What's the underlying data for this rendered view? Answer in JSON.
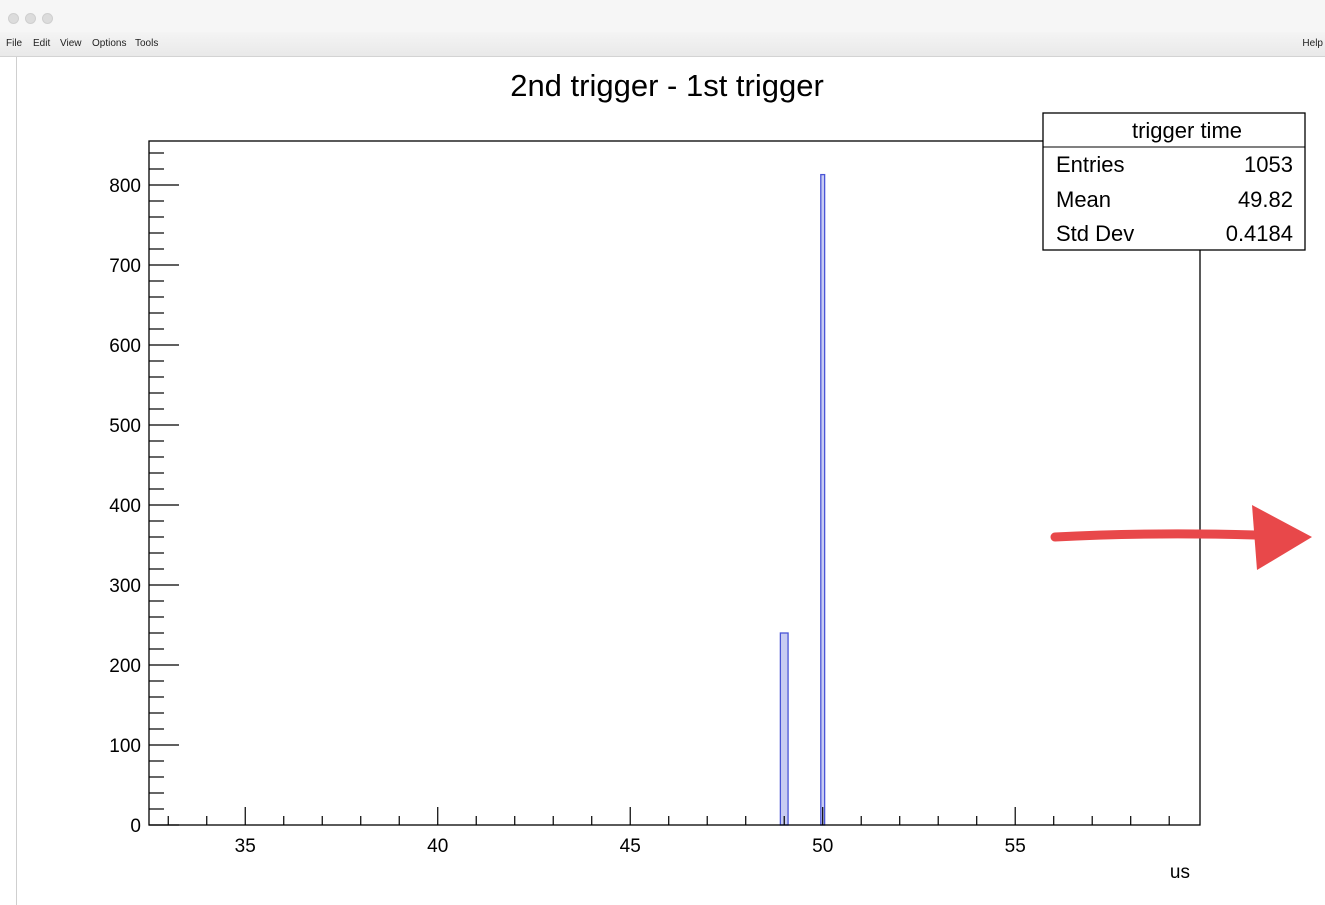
{
  "window": {
    "menu": [
      "File",
      "Edit",
      "View",
      "Options",
      "Tools"
    ],
    "help_label": "Help"
  },
  "chart_data": {
    "type": "bar",
    "title": "2nd trigger - 1st trigger",
    "xlabel": "us",
    "ylabel": "",
    "xlim": [
      32.5,
      59.8
    ],
    "ylim": [
      0,
      855
    ],
    "x_ticks": [
      35,
      40,
      45,
      50,
      55
    ],
    "y_ticks": [
      0,
      100,
      200,
      300,
      400,
      500,
      600,
      700,
      800
    ],
    "bins": [
      {
        "x0": 48.9,
        "x1": 49.1,
        "value": 240
      },
      {
        "x0": 49.95,
        "x1": 50.05,
        "value": 813
      }
    ],
    "bar_color": "#4a55d6",
    "bar_fill": "#c8ccf2",
    "grid": false,
    "stats": {
      "title": "trigger time",
      "rows": [
        {
          "label": "Entries",
          "value": "1053"
        },
        {
          "label": "Mean",
          "value": "49.82"
        },
        {
          "label": "Std Dev",
          "value": "0.4184"
        }
      ]
    },
    "annotation": {
      "type": "arrow",
      "color": "#e8484a"
    }
  }
}
